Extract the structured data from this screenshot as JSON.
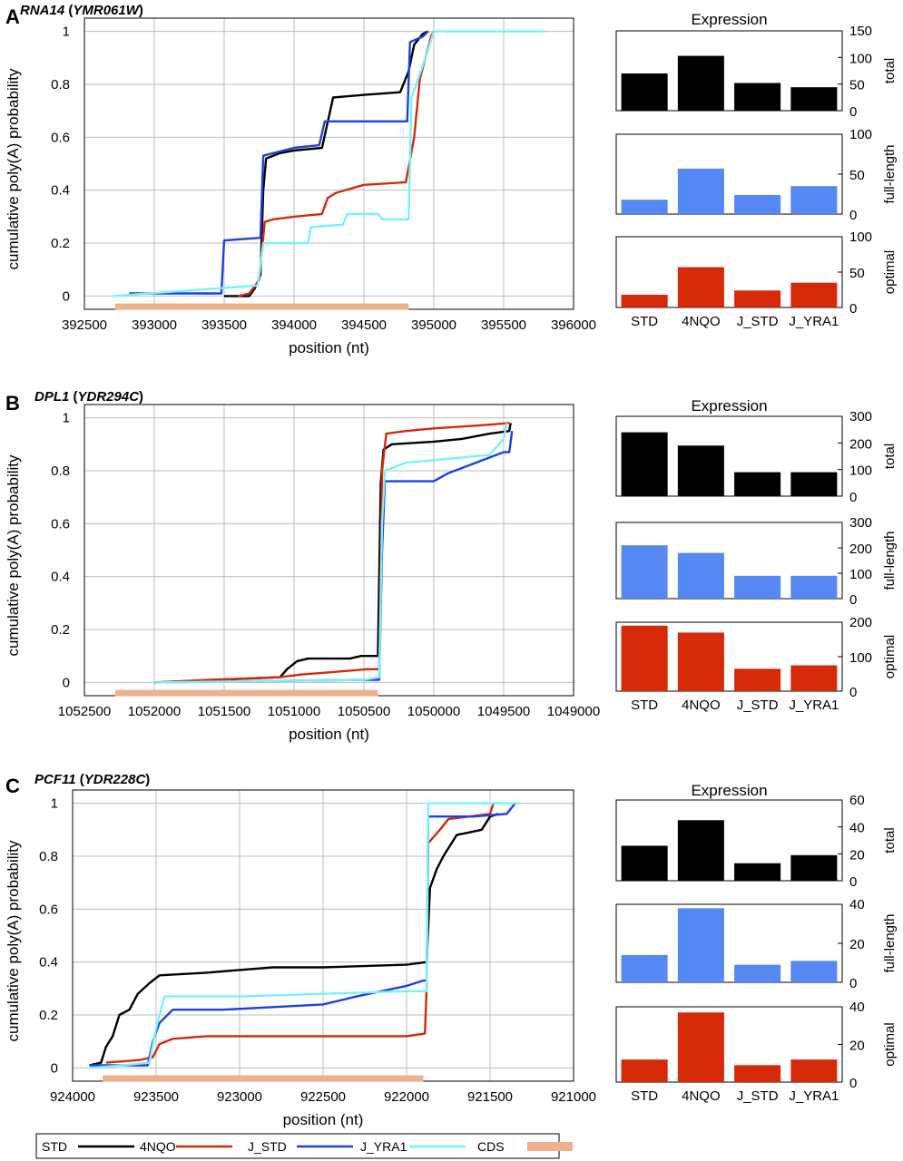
{
  "legend": {
    "entries": [
      {
        "label": "STD",
        "color": "#000000",
        "kind": "line"
      },
      {
        "label": "4NQO",
        "color": "#d42a0a",
        "kind": "line"
      },
      {
        "label": "J_STD",
        "color": "#1f3fe0",
        "kind": "line"
      },
      {
        "label": "J_YRA1",
        "color": "#79f2f7",
        "kind": "line"
      },
      {
        "label": "CDS",
        "color": "#efb08c",
        "kind": "bar"
      }
    ]
  },
  "panels": [
    {
      "letter": "A",
      "gene": "RNA14",
      "orf": "YMR061W",
      "xlabel": "position (nt)",
      "ylabel": "cumulative poly(A) probability",
      "xlim": [
        392500,
        396000
      ],
      "xticks": [
        392500,
        393000,
        393500,
        394000,
        394500,
        395000,
        395500,
        396000
      ],
      "ylim": [
        -0.05,
        1.05
      ],
      "yticks": [
        0,
        0.2,
        0.4,
        0.6,
        0.8,
        1
      ],
      "cds": [
        392720,
        394820
      ],
      "series": [
        {
          "name": "STD",
          "color": "#000000",
          "points": [
            [
              393500,
              0
            ],
            [
              393680,
              0
            ],
            [
              393720,
              0.03
            ],
            [
              393760,
              0.08
            ],
            [
              393780,
              0.4
            ],
            [
              393800,
              0.52
            ],
            [
              393900,
              0.54
            ],
            [
              394000,
              0.55
            ],
            [
              394200,
              0.56
            ],
            [
              394280,
              0.75
            ],
            [
              394500,
              0.76
            ],
            [
              394760,
              0.77
            ],
            [
              394820,
              0.85
            ],
            [
              394860,
              0.95
            ],
            [
              394920,
              0.99
            ],
            [
              394960,
              1.0
            ]
          ]
        },
        {
          "name": "4NQO",
          "color": "#d42a0a",
          "points": [
            [
              393600,
              0
            ],
            [
              393680,
              0.01
            ],
            [
              393750,
              0.06
            ],
            [
              393790,
              0.28
            ],
            [
              393850,
              0.29
            ],
            [
              394000,
              0.3
            ],
            [
              394200,
              0.31
            ],
            [
              394240,
              0.37
            ],
            [
              394300,
              0.39
            ],
            [
              394500,
              0.42
            ],
            [
              394800,
              0.43
            ],
            [
              394860,
              0.6
            ],
            [
              394900,
              0.82
            ],
            [
              394940,
              0.9
            ],
            [
              394980,
              0.98
            ],
            [
              395000,
              1.0
            ]
          ]
        },
        {
          "name": "J_STD",
          "color": "#1f3fe0",
          "points": [
            [
              392820,
              0.01
            ],
            [
              393480,
              0.01
            ],
            [
              393500,
              0.21
            ],
            [
              393760,
              0.22
            ],
            [
              393780,
              0.53
            ],
            [
              394000,
              0.56
            ],
            [
              394180,
              0.57
            ],
            [
              394220,
              0.66
            ],
            [
              394500,
              0.66
            ],
            [
              394810,
              0.66
            ],
            [
              394830,
              0.96
            ],
            [
              394920,
              0.98
            ],
            [
              394960,
              1.0
            ]
          ]
        },
        {
          "name": "J_YRA1",
          "color": "#79f2f7",
          "points": [
            [
              392700,
              0
            ],
            [
              393740,
              0.04
            ],
            [
              393780,
              0.2
            ],
            [
              394100,
              0.2
            ],
            [
              394120,
              0.26
            ],
            [
              394350,
              0.27
            ],
            [
              394380,
              0.31
            ],
            [
              394600,
              0.31
            ],
            [
              394630,
              0.29
            ],
            [
              394820,
              0.29
            ],
            [
              394840,
              0.75
            ],
            [
              394940,
              0.9
            ],
            [
              395000,
              1.0
            ],
            [
              395800,
              1.0
            ]
          ]
        }
      ],
      "bars": {
        "categories": [
          "STD",
          "4NQO",
          "J_STD",
          "J_YRA1"
        ],
        "title": "Expression",
        "sub": [
          {
            "label": "total",
            "color": "#000000",
            "ylim": [
              0,
              150
            ],
            "yticks": [
              0,
              50,
              100,
              150
            ],
            "values": [
              70,
              103,
              52,
              44
            ]
          },
          {
            "label": "full-length",
            "color": "#5588f2",
            "ylim": [
              0,
              100
            ],
            "yticks": [
              0,
              50,
              100
            ],
            "values": [
              18,
              57,
              24,
              35
            ]
          },
          {
            "label": "optimal",
            "color": "#d42a0a",
            "ylim": [
              0,
              100
            ],
            "yticks": [
              0,
              50,
              100
            ],
            "values": [
              18,
              57,
              24,
              35
            ]
          }
        ]
      }
    },
    {
      "letter": "B",
      "gene": "DPL1",
      "orf": "YDR294C",
      "xlabel": "position (nt)",
      "ylabel": "cumulative poly(A) probability",
      "xlim": [
        1052500,
        1049000
      ],
      "xticks": [
        1052500,
        1052000,
        1051500,
        1051000,
        1050500,
        1050000,
        1049500,
        1049000
      ],
      "ylim": [
        -0.05,
        1.05
      ],
      "yticks": [
        0,
        0.2,
        0.4,
        0.6,
        0.8,
        1
      ],
      "cds": [
        1052280,
        1050400
      ],
      "series": [
        {
          "name": "STD",
          "color": "#000000",
          "points": [
            [
              1052000,
              0
            ],
            [
              1051100,
              0.02
            ],
            [
              1051050,
              0.05
            ],
            [
              1050980,
              0.08
            ],
            [
              1050900,
              0.09
            ],
            [
              1050600,
              0.09
            ],
            [
              1050520,
              0.1
            ],
            [
              1050400,
              0.1
            ],
            [
              1050380,
              0.75
            ],
            [
              1050360,
              0.88
            ],
            [
              1050300,
              0.9
            ],
            [
              1050000,
              0.91
            ],
            [
              1049800,
              0.92
            ],
            [
              1049600,
              0.94
            ],
            [
              1049460,
              0.95
            ],
            [
              1049450,
              0.98
            ]
          ]
        },
        {
          "name": "4NQO",
          "color": "#d42a0a",
          "points": [
            [
              1052000,
              0
            ],
            [
              1051600,
              0.01
            ],
            [
              1051100,
              0.02
            ],
            [
              1050950,
              0.03
            ],
            [
              1050700,
              0.04
            ],
            [
              1050480,
              0.05
            ],
            [
              1050390,
              0.05
            ],
            [
              1050370,
              0.8
            ],
            [
              1050340,
              0.94
            ],
            [
              1050200,
              0.95
            ],
            [
              1050000,
              0.96
            ],
            [
              1049700,
              0.97
            ],
            [
              1049460,
              0.98
            ]
          ]
        },
        {
          "name": "J_STD",
          "color": "#1f3fe0",
          "points": [
            [
              1052000,
              0
            ],
            [
              1050500,
              0.01
            ],
            [
              1050390,
              0.01
            ],
            [
              1050370,
              0.5
            ],
            [
              1050350,
              0.76
            ],
            [
              1050000,
              0.76
            ],
            [
              1049900,
              0.79
            ],
            [
              1049700,
              0.83
            ],
            [
              1049500,
              0.87
            ],
            [
              1049460,
              0.87
            ],
            [
              1049440,
              0.95
            ]
          ]
        },
        {
          "name": "J_YRA1",
          "color": "#79f2f7",
          "points": [
            [
              1052000,
              0
            ],
            [
              1050500,
              0.01
            ],
            [
              1050390,
              0.02
            ],
            [
              1050370,
              0.6
            ],
            [
              1050350,
              0.8
            ],
            [
              1050200,
              0.83
            ],
            [
              1050000,
              0.84
            ],
            [
              1049800,
              0.85
            ],
            [
              1049600,
              0.86
            ],
            [
              1049500,
              0.92
            ],
            [
              1049480,
              0.98
            ]
          ]
        }
      ],
      "bars": {
        "categories": [
          "STD",
          "4NQO",
          "J_STD",
          "J_YRA1"
        ],
        "title": "Expression",
        "sub": [
          {
            "label": "total",
            "color": "#000000",
            "ylim": [
              0,
              300
            ],
            "yticks": [
              0,
              100,
              200,
              300
            ],
            "values": [
              240,
              190,
              90,
              90
            ]
          },
          {
            "label": "full-length",
            "color": "#5588f2",
            "ylim": [
              0,
              300
            ],
            "yticks": [
              0,
              100,
              200,
              300
            ],
            "values": [
              210,
              180,
              90,
              90
            ]
          },
          {
            "label": "optimal",
            "color": "#d42a0a",
            "ylim": [
              0,
              200
            ],
            "yticks": [
              0,
              100,
              200
            ],
            "values": [
              190,
              170,
              65,
              75
            ]
          }
        ]
      }
    },
    {
      "letter": "C",
      "gene": "PCF11",
      "orf": "YDR228C",
      "xlabel": "position (nt)",
      "ylabel": "cumulative poly(A) probability",
      "xlim": [
        924000,
        921000
      ],
      "xticks": [
        924000,
        923500,
        923000,
        922500,
        922000,
        921500,
        921000
      ],
      "ylim": [
        -0.05,
        1.05
      ],
      "yticks": [
        0,
        0.2,
        0.4,
        0.6,
        0.8,
        1
      ],
      "cds": [
        923820,
        921900
      ],
      "series": [
        {
          "name": "STD",
          "color": "#000000",
          "points": [
            [
              923900,
              0.01
            ],
            [
              923830,
              0.02
            ],
            [
              923800,
              0.08
            ],
            [
              923760,
              0.12
            ],
            [
              923720,
              0.2
            ],
            [
              923660,
              0.22
            ],
            [
              923610,
              0.28
            ],
            [
              923540,
              0.32
            ],
            [
              923480,
              0.35
            ],
            [
              923200,
              0.36
            ],
            [
              923000,
              0.37
            ],
            [
              922800,
              0.38
            ],
            [
              922500,
              0.38
            ],
            [
              922000,
              0.39
            ],
            [
              921880,
              0.4
            ],
            [
              921860,
              0.68
            ],
            [
              921820,
              0.75
            ],
            [
              921780,
              0.8
            ],
            [
              921700,
              0.88
            ],
            [
              921550,
              0.9
            ],
            [
              921500,
              0.95
            ],
            [
              921450,
              0.96
            ]
          ]
        },
        {
          "name": "4NQO",
          "color": "#d42a0a",
          "points": [
            [
              923800,
              0.02
            ],
            [
              923600,
              0.03
            ],
            [
              923520,
              0.04
            ],
            [
              923480,
              0.09
            ],
            [
              923400,
              0.11
            ],
            [
              923200,
              0.12
            ],
            [
              922800,
              0.12
            ],
            [
              922000,
              0.12
            ],
            [
              921890,
              0.13
            ],
            [
              921880,
              0.3
            ],
            [
              921870,
              0.85
            ],
            [
              921800,
              0.9
            ],
            [
              921750,
              0.94
            ],
            [
              921500,
              0.96
            ],
            [
              921480,
              1.0
            ]
          ]
        },
        {
          "name": "J_STD",
          "color": "#1f3fe0",
          "points": [
            [
              923900,
              0.01
            ],
            [
              923550,
              0.01
            ],
            [
              923520,
              0.1
            ],
            [
              923480,
              0.17
            ],
            [
              923400,
              0.22
            ],
            [
              923100,
              0.22
            ],
            [
              922800,
              0.23
            ],
            [
              922500,
              0.24
            ],
            [
              922300,
              0.27
            ],
            [
              922000,
              0.31
            ],
            [
              921900,
              0.33
            ],
            [
              921880,
              0.33
            ],
            [
              921870,
              0.95
            ],
            [
              921600,
              0.95
            ],
            [
              921400,
              0.96
            ],
            [
              921350,
              1.0
            ]
          ]
        },
        {
          "name": "J_YRA1",
          "color": "#79f2f7",
          "points": [
            [
              923900,
              0
            ],
            [
              923700,
              0.01
            ],
            [
              923540,
              0.02
            ],
            [
              923500,
              0.15
            ],
            [
              923450,
              0.27
            ],
            [
              923000,
              0.27
            ],
            [
              922500,
              0.28
            ],
            [
              922000,
              0.29
            ],
            [
              921880,
              0.29
            ],
            [
              921870,
              1.0
            ],
            [
              921320,
              1.0
            ]
          ]
        }
      ],
      "bars": {
        "categories": [
          "STD",
          "4NQO",
          "J_STD",
          "J_YRA1"
        ],
        "title": "Expression",
        "sub": [
          {
            "label": "total",
            "color": "#000000",
            "ylim": [
              0,
              60
            ],
            "yticks": [
              0,
              20,
              40,
              60
            ],
            "values": [
              26,
              45,
              13,
              19
            ]
          },
          {
            "label": "full-length",
            "color": "#5588f2",
            "ylim": [
              0,
              40
            ],
            "yticks": [
              0,
              20,
              40
            ],
            "values": [
              14,
              38,
              9,
              11
            ]
          },
          {
            "label": "optimal",
            "color": "#d42a0a",
            "ylim": [
              0,
              40
            ],
            "yticks": [
              0,
              20,
              40
            ],
            "values": [
              12,
              37,
              9,
              12
            ]
          }
        ]
      }
    }
  ]
}
